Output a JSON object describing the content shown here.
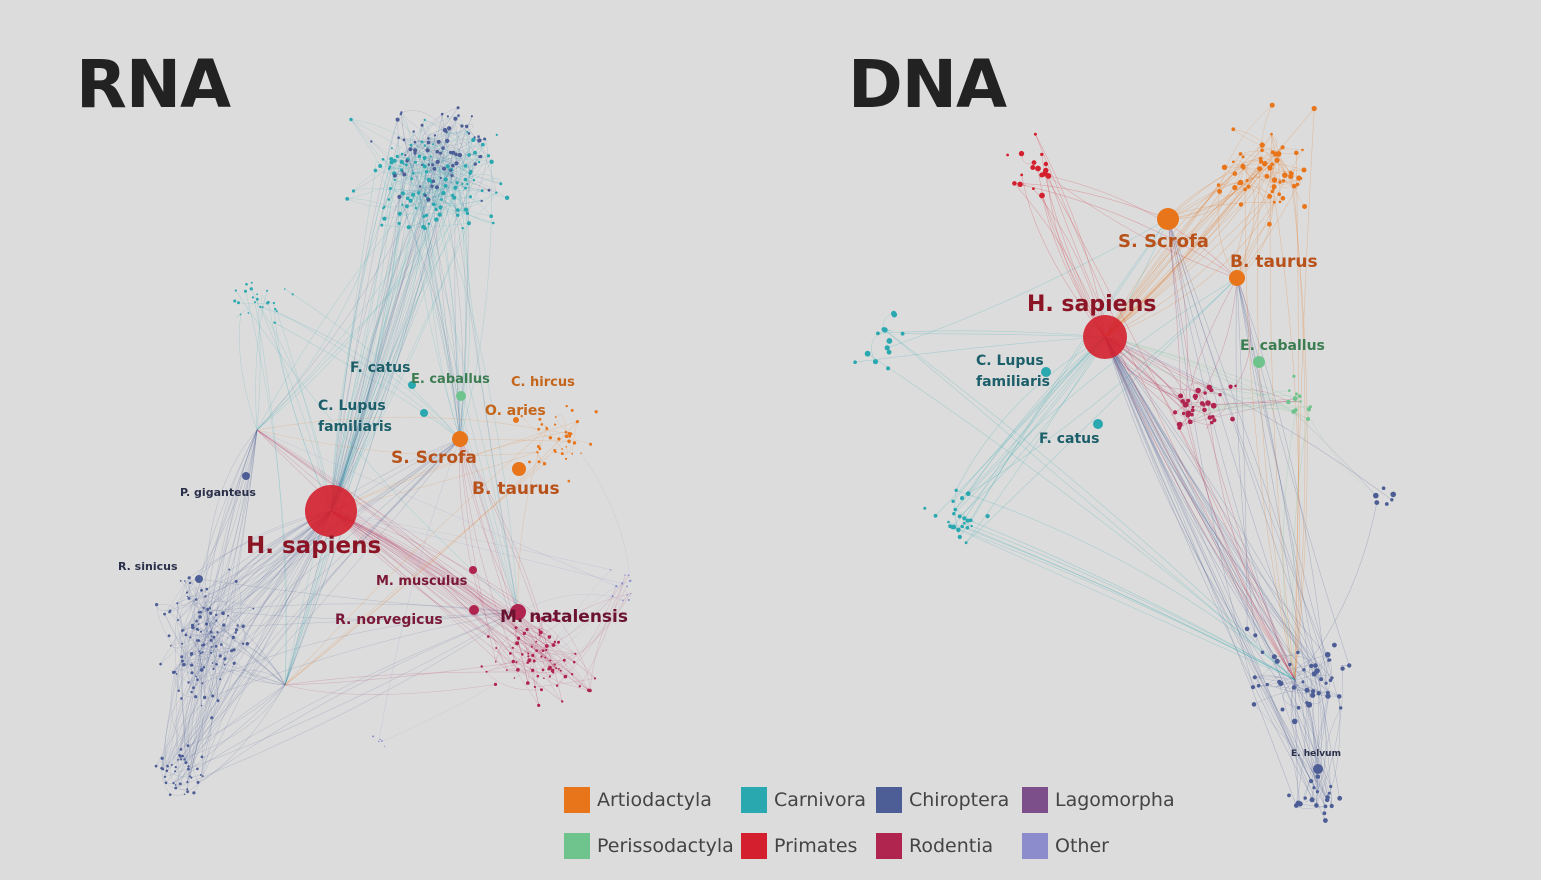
{
  "titles": {
    "rna": "RNA",
    "dna": "DNA"
  },
  "colors": {
    "Artiodactyla": "#e8751a",
    "Carnivora": "#2aa8b0",
    "Chiroptera": "#4d5e96",
    "Lagomorpha": "#7d4f8a",
    "Perissodactyla": "#6fc38c",
    "Primates": "#d4202e",
    "Rodentia": "#b02450",
    "Other": "#8c8ccc"
  },
  "legend": [
    {
      "label": "Artiodactyla",
      "color": "#e8751a"
    },
    {
      "label": "Carnivora",
      "color": "#2aa8b0"
    },
    {
      "label": "Chiroptera",
      "color": "#4d5e96"
    },
    {
      "label": "Lagomorpha",
      "color": "#7d4f8a"
    },
    {
      "label": "Perissodactyla",
      "color": "#6fc38c"
    },
    {
      "label": "Primates",
      "color": "#d4202e"
    },
    {
      "label": "Rodentia",
      "color": "#b02450"
    },
    {
      "label": "Other",
      "color": "#8c8ccc"
    }
  ],
  "rna_labels": {
    "h_sapiens": "H. sapiens",
    "s_scrofa": "S. Scrofa",
    "b_taurus": "B. taurus",
    "o_aries": "O. aries",
    "c_hircus": "C. hircus",
    "e_caballus": "E. caballus",
    "f_catus": "F. catus",
    "c_lupus_1": "C. Lupus",
    "c_lupus_2": "familiaris",
    "p_giganteus": "P. giganteus",
    "r_sinicus": "R. sinicus",
    "m_musculus": "M. musculus",
    "r_norvegicus": "R. norvegicus",
    "m_natalensis": "M. natalensis"
  },
  "dna_labels": {
    "h_sapiens": "H. sapiens",
    "s_scrofa": "S. Scrofa",
    "b_taurus": "B. taurus",
    "e_caballus": "E. caballus",
    "c_lupus_1": "C. Lupus",
    "c_lupus_2": "familiaris",
    "f_catus": "F. catus",
    "e_helvum": "E. helvum"
  }
}
